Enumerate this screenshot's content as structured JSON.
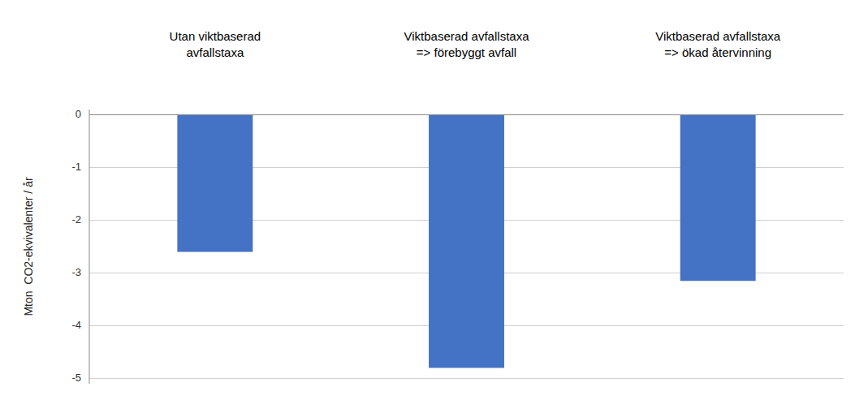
{
  "chart_data": {
    "type": "bar",
    "categories": [
      "Utan viktbaserad\navfallstaxa",
      "Viktbaserad avfallstaxa\n=> förebyggt avfall",
      "Viktbaserad avfallstaxa\n=> ökad återvinning"
    ],
    "values": [
      -2.6,
      -4.8,
      -3.15
    ],
    "color": "#4472C4",
    "ylabel": "Mton  CO2-ekvivalenter / år",
    "ylim": [
      -5.1,
      0.1
    ],
    "yticks": [
      0,
      -1,
      -2,
      -3,
      -4,
      -5
    ],
    "grid": true
  }
}
